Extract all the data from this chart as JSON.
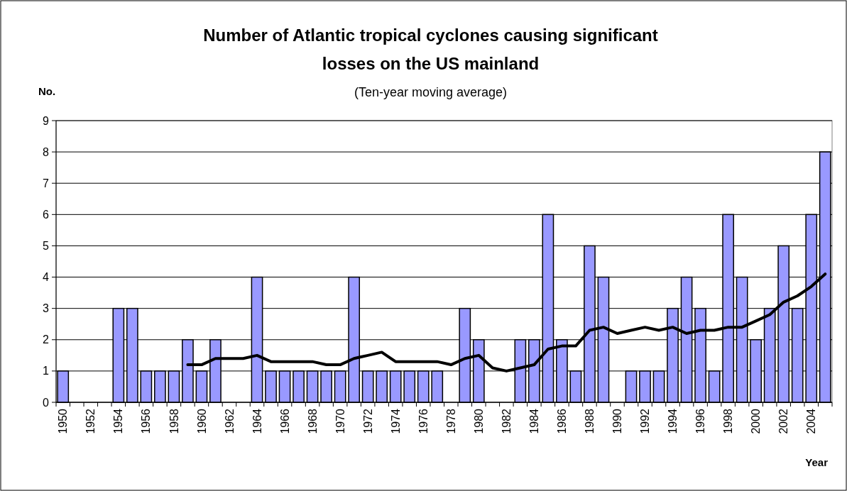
{
  "chart_data": {
    "type": "bar",
    "title": "Number of Atlantic tropical cyclones causing significant losses on the US mainland",
    "subtitle": "(Ten-year moving average)",
    "ylabel": "No.",
    "xlabel": "Year",
    "categories": [
      "1950",
      null,
      "1952",
      null,
      "1954",
      null,
      "1956",
      null,
      "1958",
      null,
      "1960",
      null,
      "1962",
      null,
      "1964",
      null,
      "1966",
      null,
      "1968",
      null,
      "1970",
      null,
      "1972",
      null,
      "1974",
      null,
      "1976",
      null,
      "1978",
      null,
      "1980",
      null,
      "1982",
      null,
      "1984",
      null,
      "1986",
      null,
      "1988",
      null,
      "1990",
      null,
      "1992",
      null,
      "1994",
      null,
      "1996",
      null,
      "1998",
      null,
      "2000",
      null,
      "2002",
      null,
      "2004",
      null
    ],
    "series": [
      {
        "color": "#9999ff",
        "values": [
          1,
          0,
          0,
          0,
          3,
          3,
          1,
          1,
          1,
          2,
          1,
          2,
          0,
          0,
          4,
          1,
          1,
          1,
          1,
          1,
          1,
          4,
          1,
          1,
          1,
          1,
          1,
          1,
          0,
          3,
          2,
          0,
          0,
          2,
          2,
          6,
          2,
          1,
          5,
          4,
          0,
          1,
          1,
          1,
          3,
          4,
          3,
          1,
          6,
          4,
          2,
          3,
          5,
          3,
          6,
          8
        ]
      },
      {
        "type": "line",
        "color": "#000000",
        "values": [
          null,
          null,
          null,
          null,
          null,
          null,
          null,
          null,
          null,
          1.2,
          1.2,
          1.4,
          1.4,
          1.4,
          1.5,
          1.3,
          1.3,
          1.3,
          1.3,
          1.2,
          1.2,
          1.4,
          1.5,
          1.6,
          1.3,
          1.3,
          1.3,
          1.3,
          1.2,
          1.4,
          1.5,
          1.1,
          1.0,
          1.1,
          1.2,
          1.7,
          1.8,
          1.8,
          2.3,
          2.4,
          2.2,
          2.3,
          2.4,
          2.3,
          2.4,
          2.2,
          2.3,
          2.3,
          2.4,
          2.4,
          2.6,
          2.8,
          3.2,
          3.4,
          3.7,
          4.1
        ]
      }
    ],
    "ylim": [
      0,
      9
    ],
    "yticks": [
      0,
      1,
      2,
      3,
      4,
      5,
      6,
      7,
      8,
      9
    ],
    "grid": "y",
    "marker": "none",
    "line_style": "solid"
  }
}
